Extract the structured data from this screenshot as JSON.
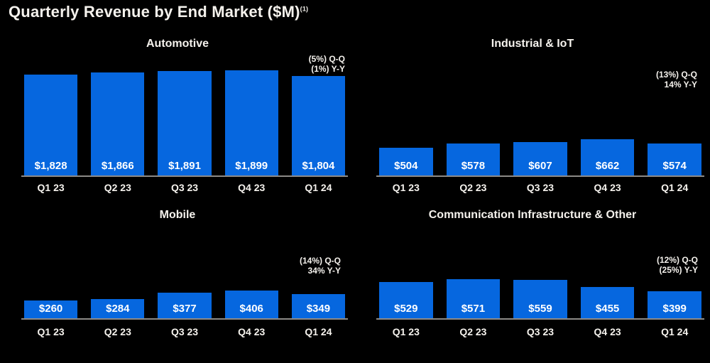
{
  "page": {
    "title": "Quarterly Revenue by End Market ($M)",
    "footnote_marker": "(1)"
  },
  "colors": {
    "background": "#000000",
    "bar": "#0667DF",
    "text": "#F5F2ED",
    "value_label": "#FFFFFF",
    "axis_line": "#8C8A87"
  },
  "chart_data": [
    {
      "type": "bar",
      "title": "Automotive",
      "categories": [
        "Q1 23",
        "Q2 23",
        "Q3 23",
        "Q4 23",
        "Q1 24"
      ],
      "values": [
        1828,
        1866,
        1891,
        1899,
        1804
      ],
      "value_labels": [
        "$1,828",
        "$1,866",
        "$1,891",
        "$1,899",
        "$1,804"
      ],
      "annotation": [
        "(5%) Q-Q",
        "(1%) Y-Y"
      ],
      "ylim": [
        0,
        2210
      ],
      "grid": false,
      "value_label_position": "inside-bottom",
      "annotation_position": "top-right"
    },
    {
      "type": "bar",
      "title": "Industrial & IoT",
      "categories": [
        "Q1 23",
        "Q2 23",
        "Q3 23",
        "Q4 23",
        "Q1 24"
      ],
      "values": [
        504,
        578,
        607,
        662,
        574
      ],
      "value_labels": [
        "$504",
        "$578",
        "$607",
        "$662",
        "$574"
      ],
      "annotation": [
        "(13%) Q-Q",
        "14% Y-Y"
      ],
      "ylim": [
        0,
        2210
      ],
      "grid": false,
      "value_label_position": "inside-bottom",
      "annotation_position": "top-right"
    },
    {
      "type": "bar",
      "title": "Mobile",
      "categories": [
        "Q1 23",
        "Q2 23",
        "Q3 23",
        "Q4 23",
        "Q1 24"
      ],
      "values": [
        260,
        284,
        377,
        406,
        349
      ],
      "value_labels": [
        "$260",
        "$284",
        "$377",
        "$406",
        "$349"
      ],
      "annotation": [
        "(14%) Q-Q",
        "34% Y-Y"
      ],
      "ylim": [
        0,
        915
      ],
      "grid": false,
      "value_label_position": "inside-bottom",
      "annotation_position": "top-right"
    },
    {
      "type": "bar",
      "title": "Communication Infrastructure & Other",
      "categories": [
        "Q1 23",
        "Q2 23",
        "Q3 23",
        "Q4 23",
        "Q1 24"
      ],
      "values": [
        529,
        571,
        559,
        455,
        399
      ],
      "value_labels": [
        "$529",
        "$571",
        "$559",
        "$455",
        "$399"
      ],
      "annotation": [
        "(12%) Q-Q",
        "(25%) Y-Y"
      ],
      "ylim": [
        0,
        915
      ],
      "grid": false,
      "value_label_position": "inside-bottom",
      "annotation_position": "top-right"
    }
  ]
}
